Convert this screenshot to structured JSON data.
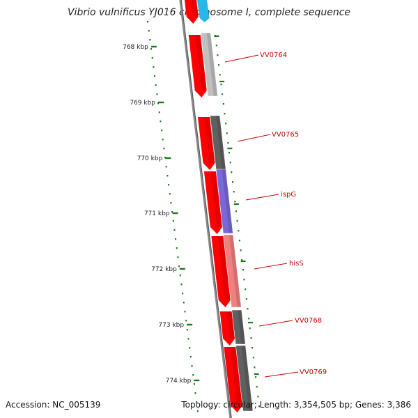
{
  "title": "Vibrio vulnificus YJ016 chromosome I, complete sequence",
  "accession_text": "Accession: NC_005139",
  "summary_text": "Topology: circular; Length: 3,354,505 bp; Genes: 3,386",
  "ticks": [
    {
      "label": "768 kbp"
    },
    {
      "label": "769 kbp"
    },
    {
      "label": "770 kbp"
    },
    {
      "label": "771 kbp"
    },
    {
      "label": "772 kbp"
    },
    {
      "label": "773 kbp"
    },
    {
      "label": "774 kbp"
    }
  ],
  "genes": [
    {
      "label": "VV0764",
      "color": "#c0c0c0"
    },
    {
      "label": "VV0765",
      "color": "#606060"
    },
    {
      "label": "ispG",
      "color": "#7b68d8"
    },
    {
      "label": "hisS",
      "color": "#f08080"
    },
    {
      "label": "VV0768",
      "color": "#606060"
    },
    {
      "label": "VV0769",
      "color": "#606060"
    }
  ],
  "colors": {
    "strand": "#ff0000",
    "backbone": "#777777",
    "ticks": "#1a7a1a",
    "gene_label": "#cc0000",
    "partial_top": "#29b6e8"
  }
}
